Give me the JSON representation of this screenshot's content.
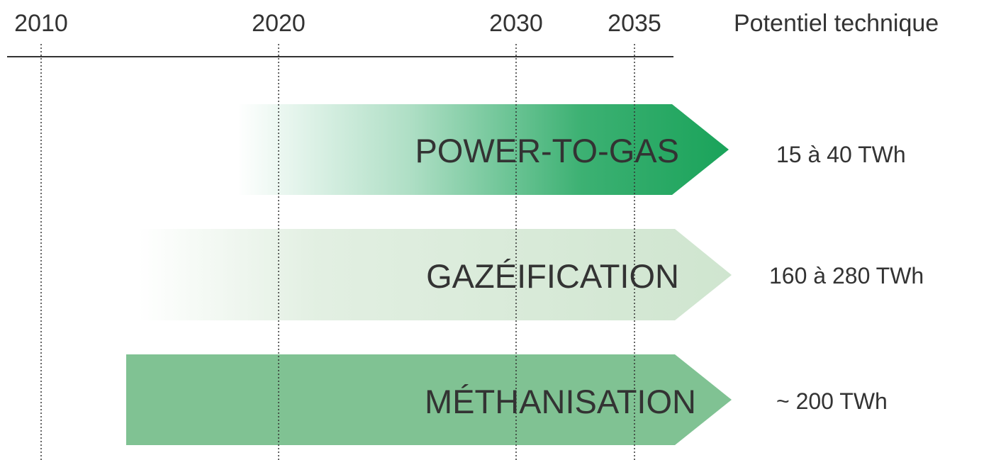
{
  "axis": {
    "years": [
      "2010",
      "2020",
      "2030",
      "2035"
    ],
    "header": "Potentiel technique"
  },
  "rows": [
    {
      "label": "POWER-TO-GAS",
      "potential": "15 à 40 TWh"
    },
    {
      "label": "GAZÉIFICATION",
      "potential": "160 à 280 TWh"
    },
    {
      "label": "MÉTHANISATION",
      "potential": "~ 200 TWh"
    }
  ]
}
